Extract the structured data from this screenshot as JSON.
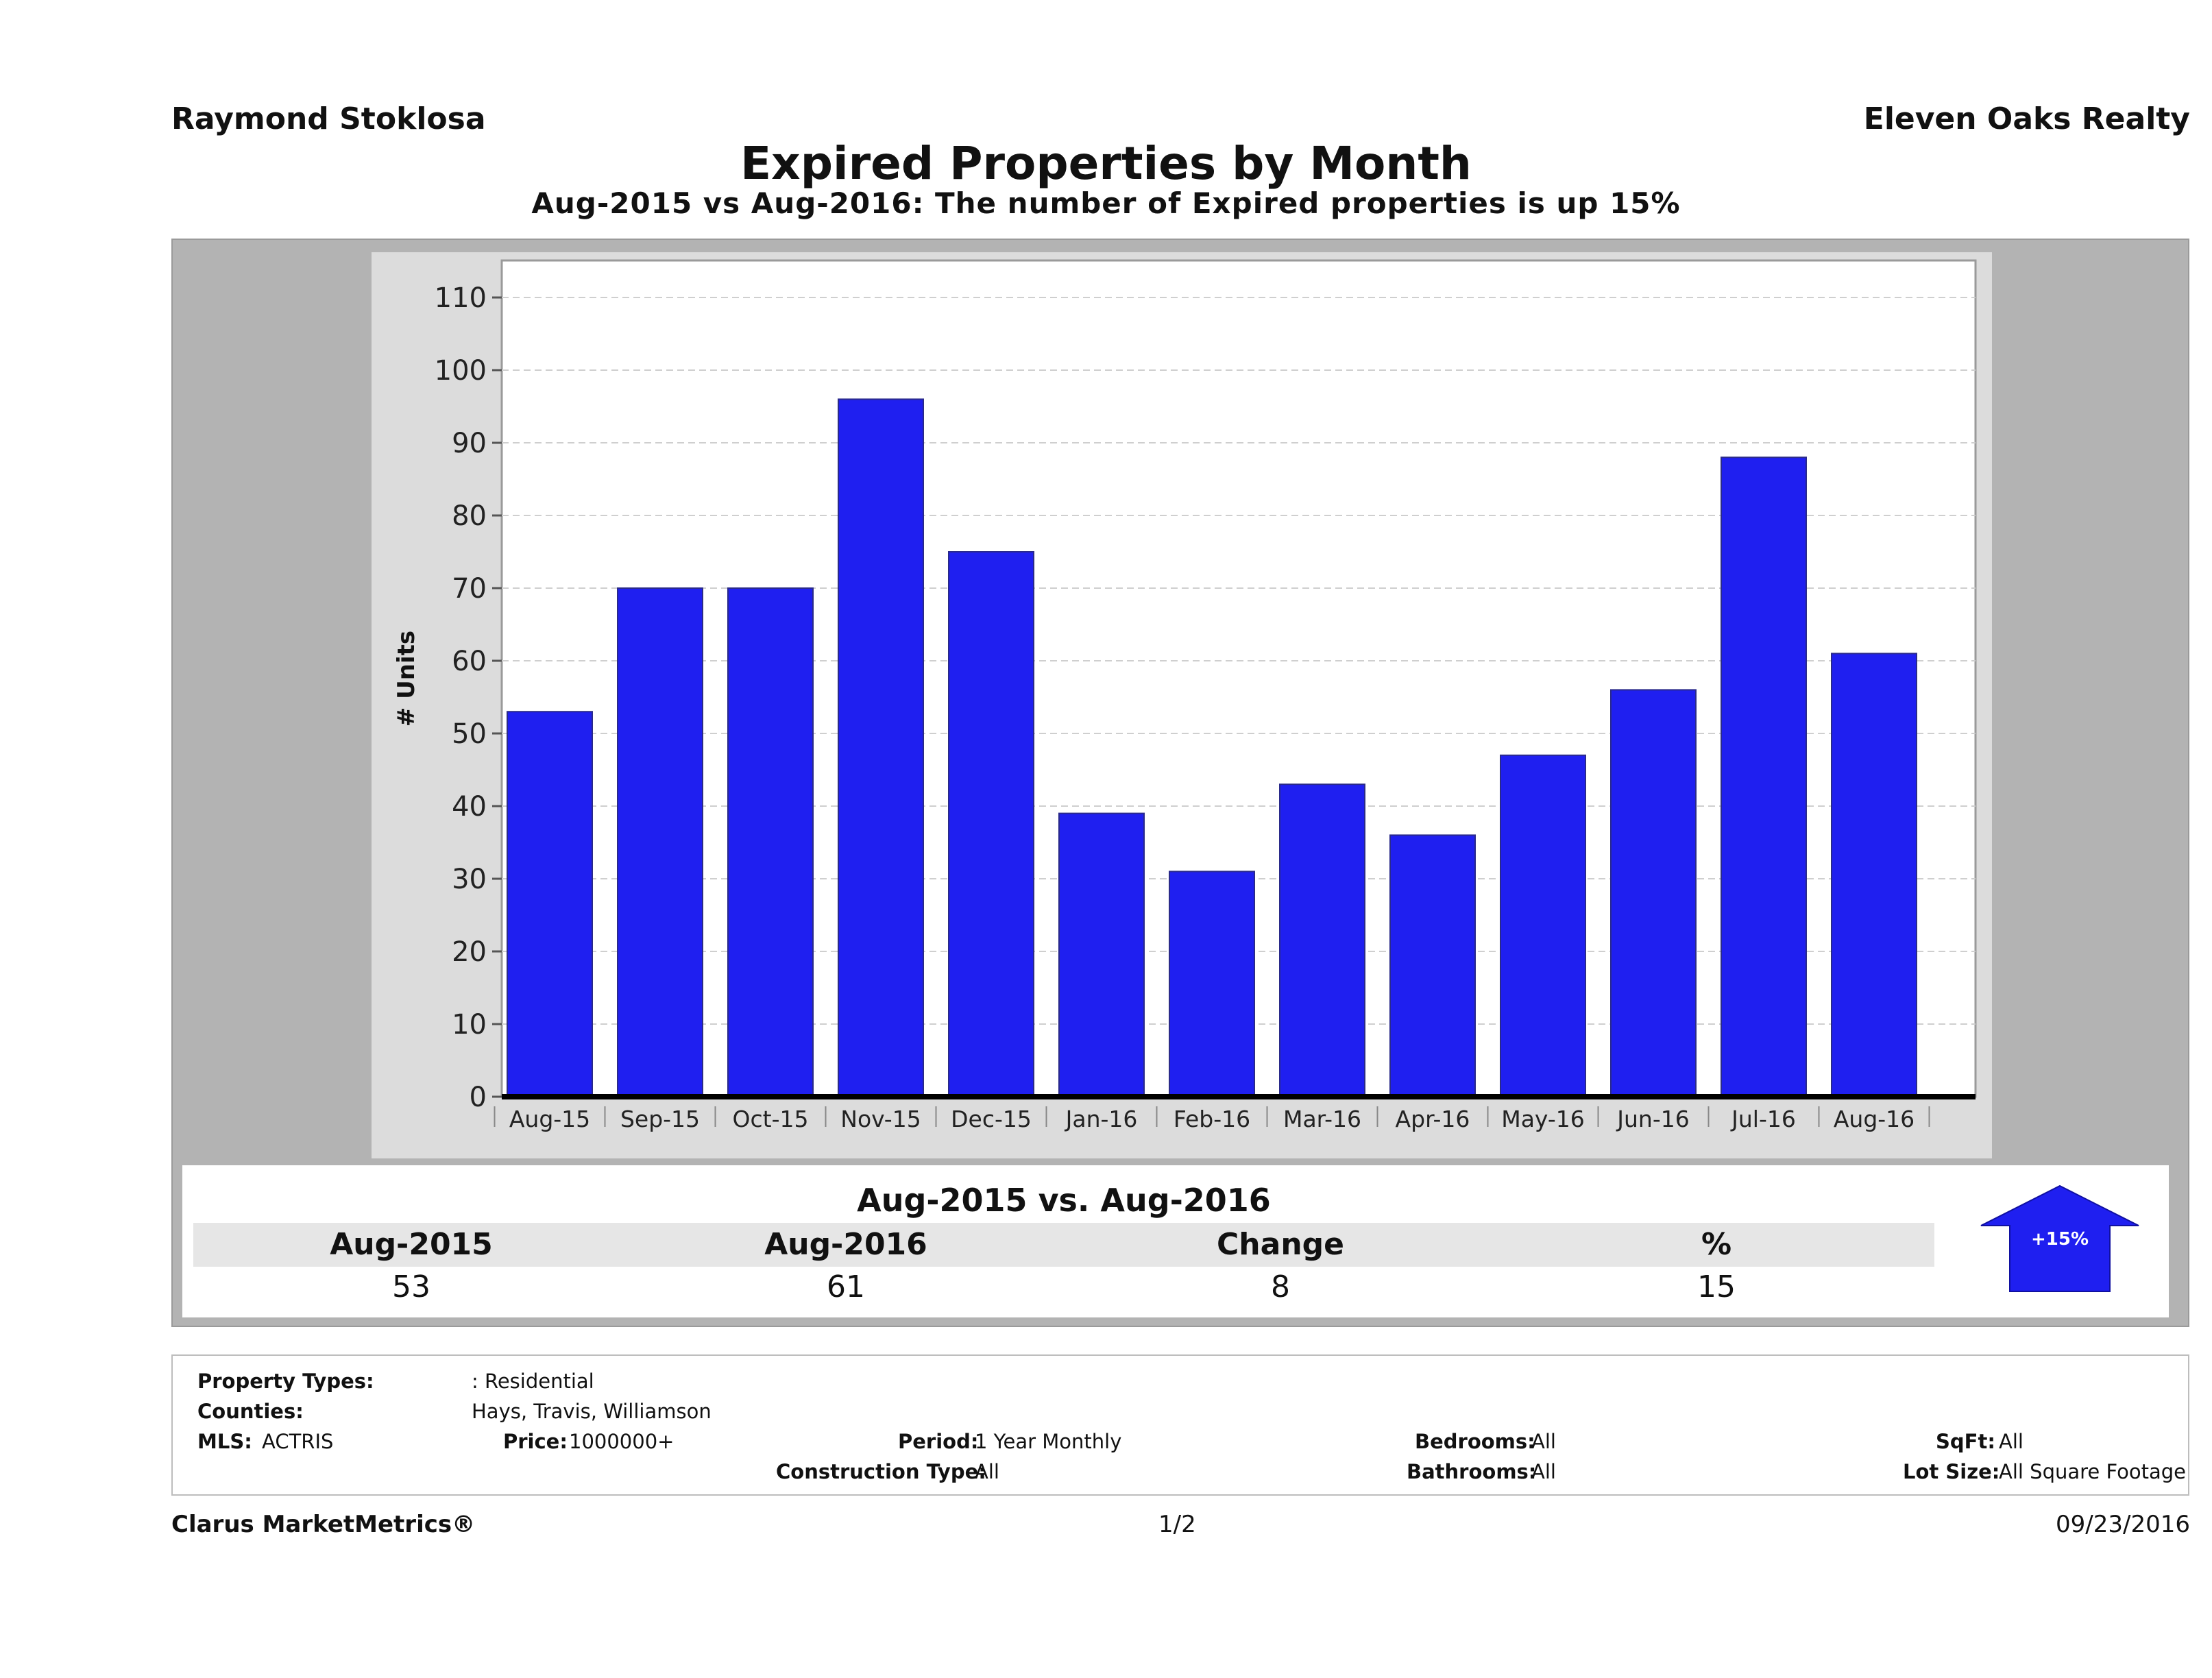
{
  "header": {
    "agent": "Raymond Stoklosa",
    "company": "Eleven Oaks Realty",
    "title": "Expired Properties by Month",
    "subtitle": "Aug-2015 vs Aug-2016: The number of Expired  properties is up 15%"
  },
  "chart_data": {
    "type": "bar",
    "title": "Expired Properties by Month",
    "subtitle": "Aug-2015 vs Aug-2016: The number of Expired  properties is up 15%",
    "xlabel": "",
    "ylabel": "# Units",
    "ylim": [
      0,
      110
    ],
    "yticks": [
      0,
      10,
      20,
      30,
      40,
      50,
      60,
      70,
      80,
      90,
      100,
      110
    ],
    "grid": true,
    "categories": [
      "Aug-15",
      "Sep-15",
      "Oct-15",
      "Nov-15",
      "Dec-15",
      "Jan-16",
      "Feb-16",
      "Mar-16",
      "Apr-16",
      "May-16",
      "Jun-16",
      "Jul-16",
      "Aug-16"
    ],
    "values": [
      53,
      70,
      70,
      96,
      75,
      39,
      31,
      43,
      36,
      47,
      56,
      88,
      61
    ],
    "bar_color": "#1f1ff0"
  },
  "summary": {
    "title": "Aug-2015 vs. Aug-2016",
    "headers": [
      "Aug-2015",
      "Aug-2016",
      "Change",
      "%"
    ],
    "values": [
      "53",
      "61",
      "8",
      "15"
    ],
    "badge": "+15%",
    "badge_color": "#1f1ff0"
  },
  "filters": {
    "property_types_label": "Property Types:",
    "property_types_value": ": Residential",
    "counties_label": "Counties:",
    "counties_value": "Hays, Travis, Williamson",
    "mls_label": "MLS:",
    "mls_value": "ACTRIS",
    "price_label": "Price:",
    "price_value": "1000000+",
    "period_label": "Period:",
    "period_value": "1 Year Monthly",
    "construction_label": "Construction Type:",
    "construction_value": "All",
    "bedrooms_label": "Bedrooms:",
    "bedrooms_value": "All",
    "bathrooms_label": "Bathrooms:",
    "bathrooms_value": "All",
    "sqft_label": "SqFt:",
    "sqft_value": "All",
    "lot_label": "Lot Size:",
    "lot_value": "All Square Footage"
  },
  "footer": {
    "brand": "Clarus MarketMetrics®",
    "page": "1/2",
    "date": "09/23/2016"
  }
}
